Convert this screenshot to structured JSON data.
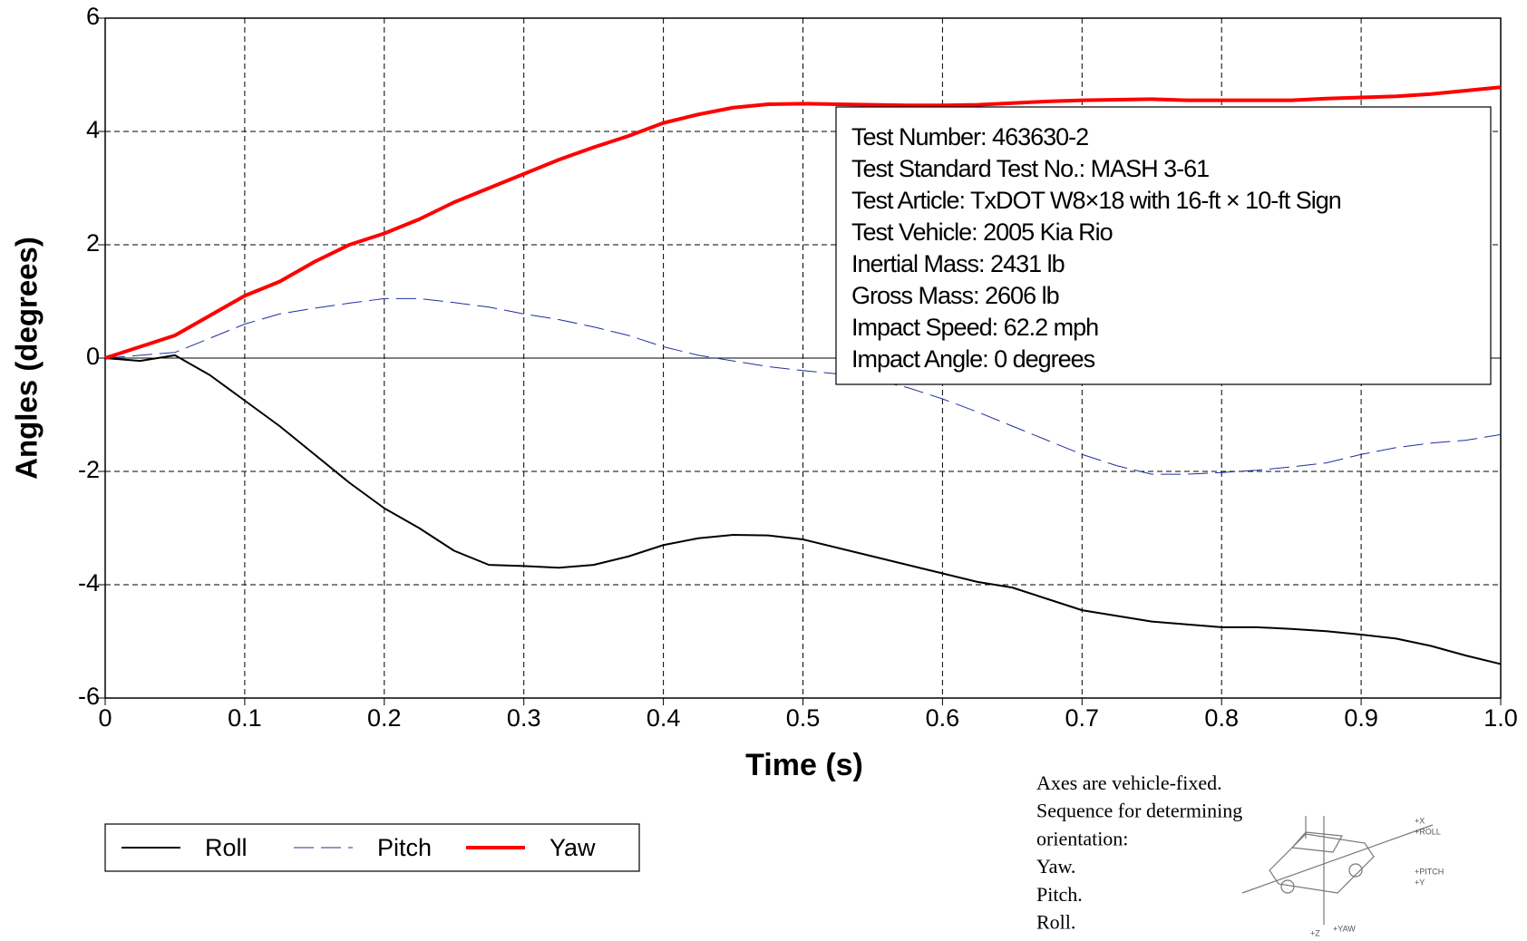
{
  "chart_data": {
    "type": "line",
    "xlabel": "Time (s)",
    "ylabel": "Angles (degrees)",
    "x": [
      0,
      0.025,
      0.05,
      0.075,
      0.1,
      0.125,
      0.15,
      0.175,
      0.2,
      0.225,
      0.25,
      0.275,
      0.3,
      0.325,
      0.35,
      0.375,
      0.4,
      0.425,
      0.45,
      0.475,
      0.5,
      0.525,
      0.55,
      0.575,
      0.6,
      0.625,
      0.65,
      0.675,
      0.7,
      0.725,
      0.75,
      0.775,
      0.8,
      0.825,
      0.85,
      0.875,
      0.9,
      0.925,
      0.95,
      0.975,
      1.0
    ],
    "series": [
      {
        "name": "Roll",
        "color": "#000000",
        "width": 2,
        "dash": "none",
        "values": [
          0,
          -0.05,
          0.05,
          -0.3,
          -0.75,
          -1.2,
          -1.7,
          -2.2,
          -2.65,
          -3.0,
          -3.4,
          -3.65,
          -3.67,
          -3.7,
          -3.65,
          -3.5,
          -3.3,
          -3.18,
          -3.12,
          -3.13,
          -3.2,
          -3.35,
          -3.5,
          -3.65,
          -3.8,
          -3.95,
          -4.05,
          -4.25,
          -4.45,
          -4.55,
          -4.65,
          -4.7,
          -4.75,
          -4.75,
          -4.78,
          -4.82,
          -4.88,
          -4.95,
          -5.08,
          -5.25,
          -5.4
        ]
      },
      {
        "name": "Pitch",
        "color": "#1f2f9f",
        "width": 1,
        "dash": "22 8",
        "values": [
          0,
          0.05,
          0.1,
          0.35,
          0.6,
          0.78,
          0.88,
          0.97,
          1.05,
          1.05,
          0.98,
          0.9,
          0.78,
          0.68,
          0.55,
          0.4,
          0.2,
          0.05,
          -0.05,
          -0.15,
          -0.22,
          -0.28,
          -0.38,
          -0.52,
          -0.72,
          -0.95,
          -1.2,
          -1.45,
          -1.7,
          -1.9,
          -2.05,
          -2.05,
          -2.02,
          -1.98,
          -1.92,
          -1.85,
          -1.7,
          -1.58,
          -1.5,
          -1.45,
          -1.35
        ]
      },
      {
        "name": "Yaw",
        "color": "#ff0000",
        "width": 4,
        "dash": "none",
        "values": [
          0,
          0.2,
          0.4,
          0.75,
          1.1,
          1.35,
          1.7,
          2.0,
          2.2,
          2.45,
          2.75,
          3.0,
          3.25,
          3.5,
          3.72,
          3.92,
          4.15,
          4.3,
          4.42,
          4.48,
          4.49,
          4.48,
          4.47,
          4.46,
          4.46,
          4.47,
          4.5,
          4.53,
          4.55,
          4.56,
          4.57,
          4.55,
          4.55,
          4.55,
          4.55,
          4.58,
          4.6,
          4.62,
          4.66,
          4.72,
          4.78
        ]
      }
    ],
    "xlim": [
      0,
      1
    ],
    "xticks": [
      0,
      0.1,
      0.2,
      0.3,
      0.4,
      0.5,
      0.6,
      0.7,
      0.8,
      0.9,
      {
        "value": 1,
        "label": "1.0"
      }
    ],
    "ylim": [
      -6,
      6
    ],
    "yticks": [
      -6,
      -4,
      -2,
      0,
      2,
      4,
      6
    ],
    "grid": true,
    "legend": "bottom-left",
    "info_box": [
      "Test Number: 463630-2",
      "Test Standard Test No.: MASH 3-61",
      "Test Article: TxDOT W8×18 with 16-ft × 10-ft Sign",
      "Test Vehicle: 2005 Kia Rio",
      "Inertial Mass: 2431 lb",
      "Gross Mass: 2606 lb",
      "Impact Speed: 62.2 mph",
      "Impact Angle: 0 degrees"
    ],
    "note": [
      "Axes are vehicle-fixed.",
      "Sequence for determining",
      "orientation:",
      "Yaw.",
      "Pitch.",
      "Roll."
    ],
    "diagram_labels": [
      "+X",
      "+ROLL",
      "+PITCH",
      "+Y",
      "+Z",
      "+YAW"
    ]
  }
}
